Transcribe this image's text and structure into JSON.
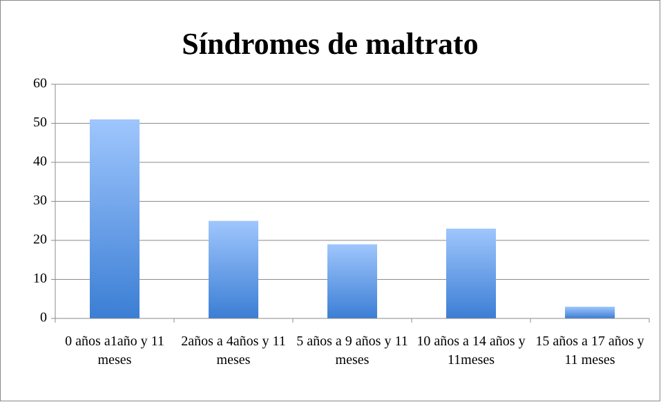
{
  "chart_data": {
    "type": "bar",
    "title": "Síndromes de maltrato",
    "categories": [
      "0 años a1año y 11 meses",
      "2años a 4años y 11 meses",
      "5 años a 9 años y 11 meses",
      "10 años a 14 años y 11meses",
      "15 años a 17 años y 11 meses"
    ],
    "values": [
      51,
      25,
      19,
      23,
      3
    ],
    "color": "#4f8de0",
    "ylim": [
      0,
      60
    ],
    "yticks": [
      0,
      10,
      20,
      30,
      40,
      50,
      60
    ],
    "grid": true
  }
}
